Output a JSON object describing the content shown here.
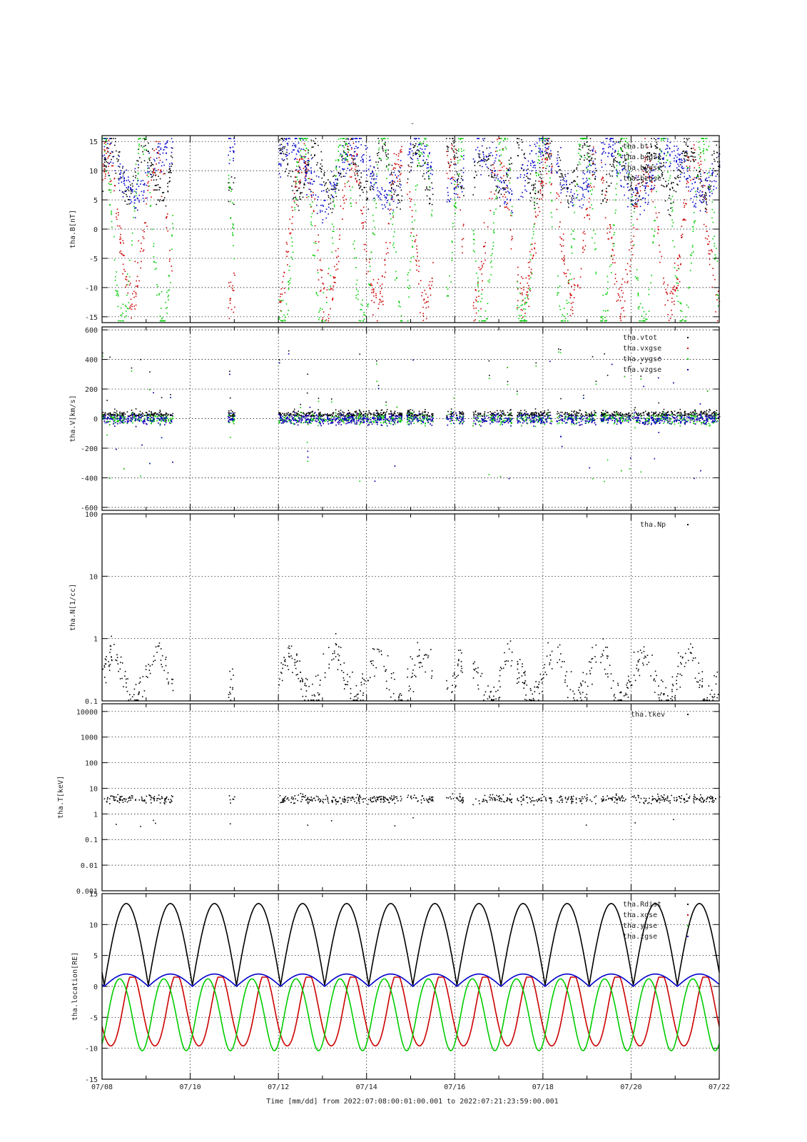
{
  "title": "-",
  "xlabel": "Time [mm/dd]  from 2022:07:08:00:01:00.001  to  2022:07:21:23:59:00.001",
  "x_ticks": [
    "07/08",
    "07/10",
    "07/12",
    "07/14",
    "07/16",
    "07/18",
    "07/20",
    "07/22"
  ],
  "colors": {
    "black": "#000000",
    "red": "#cc0000",
    "green": "#00cc00",
    "blue": "#0000cc"
  },
  "chart_data": [
    {
      "type": "scatter",
      "ylabel": "tha.B[nT]",
      "ylim": [
        -16,
        16
      ],
      "yscale": "linear",
      "y_ticks": [
        "15",
        "10",
        "5",
        "0",
        "-5",
        "-10",
        "-15"
      ],
      "y_tick_values": [
        15,
        10,
        5,
        0,
        -5,
        -10,
        -15
      ],
      "series": [
        {
          "name": "tha.bt",
          "color": "black",
          "pattern": "bt"
        },
        {
          "name": "tha.bxgse",
          "color": "red",
          "pattern": "bx"
        },
        {
          "name": "tha.bygse",
          "color": "green",
          "pattern": "by"
        },
        {
          "name": "tha.bzgse",
          "color": "blue",
          "pattern": "bz"
        }
      ]
    },
    {
      "type": "scatter",
      "ylabel": "tha.V[km/s]",
      "ylim": [
        -620,
        620
      ],
      "yscale": "linear",
      "y_ticks": [
        "600",
        "400",
        "200",
        "0",
        "-200",
        "-400",
        "-600"
      ],
      "y_tick_values": [
        600,
        400,
        200,
        0,
        -200,
        -400,
        -600
      ],
      "series": [
        {
          "name": "tha.vtot",
          "color": "black",
          "pattern": "vt"
        },
        {
          "name": "tha.vxgse",
          "color": "red",
          "pattern": "vx"
        },
        {
          "name": "tha.vygse",
          "color": "green",
          "pattern": "vy"
        },
        {
          "name": "tha.vzgse",
          "color": "blue",
          "pattern": "vz"
        }
      ]
    },
    {
      "type": "scatter",
      "ylabel": "tha.N[1/cc]",
      "ylim": [
        0.1,
        100
      ],
      "yscale": "log",
      "y_ticks": [
        "100",
        "10",
        "1",
        "0.1"
      ],
      "y_tick_values": [
        100,
        10,
        1,
        0.1
      ],
      "series": [
        {
          "name": "tha.Np",
          "color": "black",
          "pattern": "np"
        }
      ]
    },
    {
      "type": "scatter",
      "ylabel": "tha.T[keV]",
      "ylim": [
        0.001,
        20000
      ],
      "yscale": "log",
      "y_ticks": [
        "10000",
        "1000",
        "100",
        "10",
        "1",
        "0.1",
        "0.01",
        "0.001"
      ],
      "y_tick_values": [
        10000,
        1000,
        100,
        10,
        1,
        0.1,
        0.01,
        0.001
      ],
      "series": [
        {
          "name": "tha.tkev",
          "color": "black",
          "pattern": "tk"
        }
      ]
    },
    {
      "type": "line",
      "ylabel": "tha.location[RE]",
      "ylim": [
        -15,
        15
      ],
      "yscale": "linear",
      "y_ticks": [
        "15",
        "10",
        "5",
        "0",
        "-5",
        "-10",
        "-15"
      ],
      "y_tick_values": [
        15,
        10,
        5,
        0,
        -5,
        -10,
        -15
      ],
      "orbit_period_days": 1.0,
      "series": [
        {
          "name": "tha.Rdist",
          "color": "black",
          "apogee": 13.4,
          "perigee": 0.2
        },
        {
          "name": "tha.xgse",
          "color": "red",
          "min": -10.0,
          "max": 1.5
        },
        {
          "name": "tha.ygse",
          "color": "green",
          "min": -10.0,
          "max": 1.5
        },
        {
          "name": "tha.zgse",
          "color": "blue",
          "min": 0.0,
          "max": 2.0
        }
      ]
    }
  ]
}
